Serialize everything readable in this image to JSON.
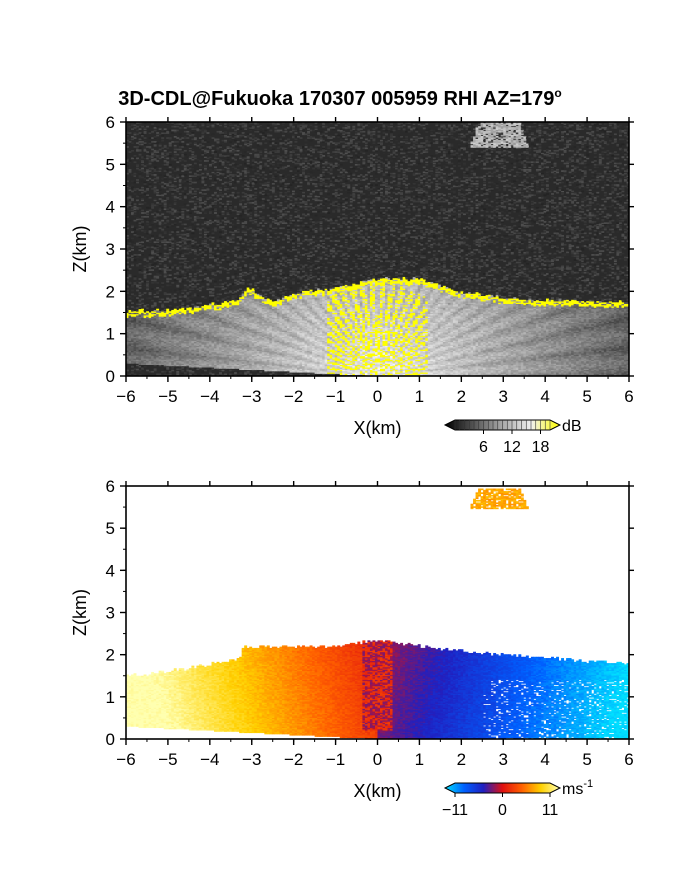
{
  "title": {
    "text": "3D-CDL@Fukuoka 170307 005959 RHI AZ=179",
    "degree_mark": "o"
  },
  "chart_data": [
    {
      "type": "heatmap",
      "variable": "SNR",
      "xlabel": "X(km)",
      "ylabel": "Z(km)",
      "xlim": [
        -6,
        6
      ],
      "ylim": [
        0,
        6
      ],
      "xticks": [
        "-6",
        "-5",
        "-4",
        "-3",
        "-2",
        "-1",
        "0",
        "1",
        "2",
        "3",
        "4",
        "5",
        "6"
      ],
      "yticks": [
        "0",
        "1",
        "2",
        "3",
        "4",
        "5",
        "6"
      ],
      "background_color": "#2a2a2a",
      "highlight_color": "#ffff00",
      "colorbar": {
        "unit": "dB",
        "ticks": [
          "6",
          "12",
          "18"
        ],
        "range": [
          0,
          20
        ]
      },
      "echo_top_km": [
        {
          "x": -6.0,
          "z": 1.55
        },
        {
          "x": -5.0,
          "z": 1.55
        },
        {
          "x": -4.2,
          "z": 1.65
        },
        {
          "x": -3.3,
          "z": 1.8
        },
        {
          "x": -3.1,
          "z": 2.1
        },
        {
          "x": -2.5,
          "z": 1.75
        },
        {
          "x": -2.0,
          "z": 1.95
        },
        {
          "x": -1.2,
          "z": 2.05
        },
        {
          "x": 0.0,
          "z": 2.3
        },
        {
          "x": 1.0,
          "z": 2.3
        },
        {
          "x": 2.0,
          "z": 2.0
        },
        {
          "x": 3.0,
          "z": 1.85
        },
        {
          "x": 4.0,
          "z": 1.8
        },
        {
          "x": 5.0,
          "z": 1.78
        },
        {
          "x": 6.0,
          "z": 1.75
        }
      ],
      "upper_echo": {
        "x": [
          2.2,
          3.6
        ],
        "z": [
          5.4,
          6.0
        ]
      }
    },
    {
      "type": "heatmap",
      "variable": "Doppler velocity",
      "xlabel": "X(km)",
      "ylabel": "Z(km)",
      "xlim": [
        -6,
        6
      ],
      "ylim": [
        0,
        6
      ],
      "xticks": [
        "-6",
        "-5",
        "-4",
        "-3",
        "-2",
        "-1",
        "0",
        "1",
        "2",
        "3",
        "4",
        "5",
        "6"
      ],
      "yticks": [
        "0",
        "1",
        "2",
        "3",
        "4",
        "5",
        "6"
      ],
      "colorbar": {
        "unit": "ms",
        "unit_exponent": "-1",
        "ticks": [
          "−11",
          "0",
          "11"
        ],
        "range": [
          -11,
          11
        ]
      },
      "color_stops": [
        "#00e0ff",
        "#0060ff",
        "#2020c0",
        "#e01010",
        "#ff6000",
        "#ffd000",
        "#ffffb0"
      ],
      "echo_top_km": [
        {
          "x": -6.0,
          "z": 1.5
        },
        {
          "x": -5.0,
          "z": 1.6
        },
        {
          "x": -3.3,
          "z": 1.9
        },
        {
          "x": -3.2,
          "z": 2.2
        },
        {
          "x": -1.0,
          "z": 2.2
        },
        {
          "x": 0.0,
          "z": 2.35
        },
        {
          "x": 1.0,
          "z": 2.2
        },
        {
          "x": 3.0,
          "z": 2.0
        },
        {
          "x": 5.0,
          "z": 1.85
        },
        {
          "x": 6.0,
          "z": 1.8
        }
      ],
      "upper_echo": {
        "x": [
          2.2,
          3.6
        ],
        "z": [
          5.45,
          5.95
        ],
        "velocity_ms": 6
      }
    }
  ]
}
